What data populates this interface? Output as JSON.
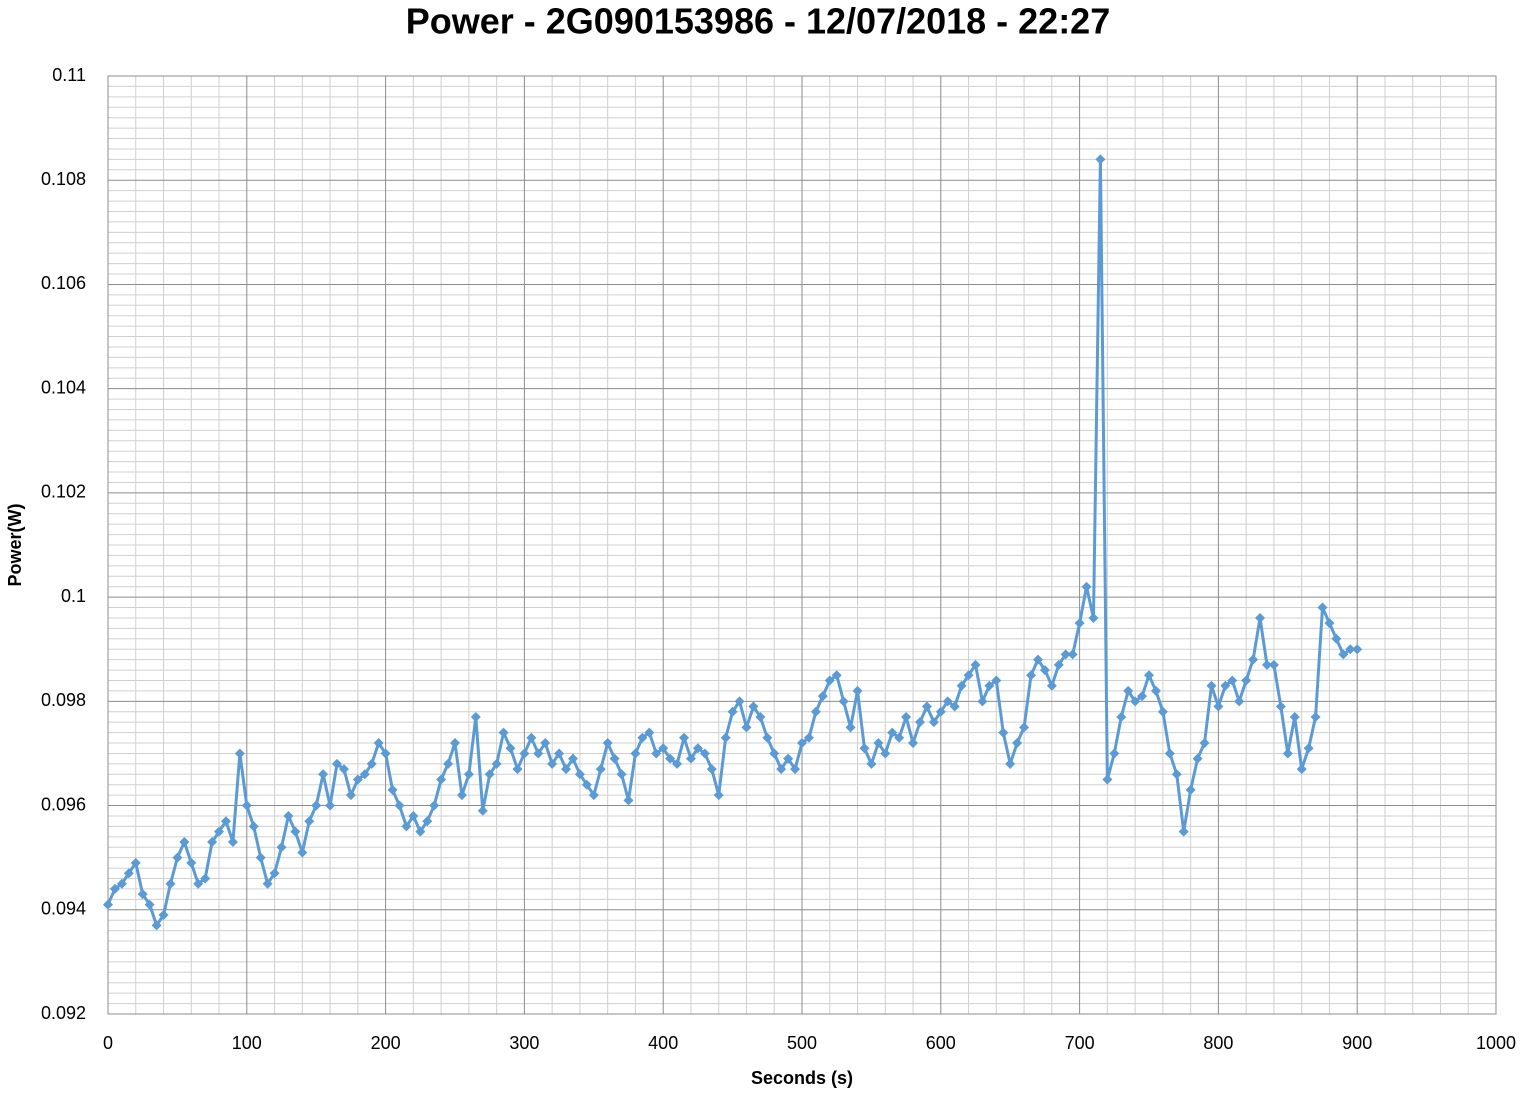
{
  "chart_data": {
    "type": "line",
    "title": "Power - 2G090153986 - 12/07/2018 - 22:27",
    "x_label": "Seconds (s)",
    "y_label": "Power(W)",
    "xlim": [
      0,
      1000
    ],
    "xticks": [
      0,
      100,
      200,
      300,
      400,
      500,
      600,
      700,
      800,
      900,
      1000
    ],
    "ylim": [
      0.092,
      0.11
    ],
    "yticks": [
      0.092,
      0.094,
      0.096,
      0.098,
      0.1,
      0.102,
      0.104,
      0.106,
      0.108,
      0.11
    ],
    "grid": true,
    "minor_grid": true,
    "marker": "diamond",
    "x": [
      0,
      5,
      10,
      15,
      20,
      25,
      30,
      35,
      40,
      45,
      50,
      55,
      60,
      65,
      70,
      75,
      80,
      85,
      90,
      95,
      100,
      105,
      110,
      115,
      120,
      125,
      130,
      135,
      140,
      145,
      150,
      155,
      160,
      165,
      170,
      175,
      180,
      185,
      190,
      195,
      200,
      205,
      210,
      215,
      220,
      225,
      230,
      235,
      240,
      245,
      250,
      255,
      260,
      265,
      270,
      275,
      280,
      285,
      290,
      295,
      300,
      305,
      310,
      315,
      320,
      325,
      330,
      335,
      340,
      345,
      350,
      355,
      360,
      365,
      370,
      375,
      380,
      385,
      390,
      395,
      400,
      405,
      410,
      415,
      420,
      425,
      430,
      435,
      440,
      445,
      450,
      455,
      460,
      465,
      470,
      475,
      480,
      485,
      490,
      495,
      500,
      505,
      510,
      515,
      520,
      525,
      530,
      535,
      540,
      545,
      550,
      555,
      560,
      565,
      570,
      575,
      580,
      585,
      590,
      595,
      600,
      605,
      610,
      615,
      620,
      625,
      630,
      635,
      640,
      645,
      650,
      655,
      660,
      665,
      670,
      675,
      680,
      685,
      690,
      695,
      700,
      705,
      710,
      715,
      720,
      725,
      730,
      735,
      740,
      745,
      750,
      755,
      760,
      765,
      770,
      775,
      780,
      785,
      790,
      795,
      800,
      805,
      810,
      815,
      820,
      825,
      830,
      835,
      840,
      845,
      850,
      855,
      860,
      865,
      870,
      875,
      880,
      885,
      890,
      895,
      900
    ],
    "series": [
      {
        "name": "Power(W)",
        "color": "#5b9bd5",
        "values": [
          0.0941,
          0.0944,
          0.0945,
          0.0947,
          0.0949,
          0.0943,
          0.0941,
          0.0937,
          0.0939,
          0.0945,
          0.095,
          0.0953,
          0.0949,
          0.0945,
          0.0946,
          0.0953,
          0.0955,
          0.0957,
          0.0953,
          0.097,
          0.096,
          0.0956,
          0.095,
          0.0945,
          0.0947,
          0.0952,
          0.0958,
          0.0955,
          0.0951,
          0.0957,
          0.096,
          0.0966,
          0.096,
          0.0968,
          0.0967,
          0.0962,
          0.0965,
          0.0966,
          0.0968,
          0.0972,
          0.097,
          0.0963,
          0.096,
          0.0956,
          0.0958,
          0.0955,
          0.0957,
          0.096,
          0.0965,
          0.0968,
          0.0972,
          0.0962,
          0.0966,
          0.0977,
          0.0959,
          0.0966,
          0.0968,
          0.0974,
          0.0971,
          0.0967,
          0.097,
          0.0973,
          0.097,
          0.0972,
          0.0968,
          0.097,
          0.0967,
          0.0969,
          0.0966,
          0.0964,
          0.0962,
          0.0967,
          0.0972,
          0.0969,
          0.0966,
          0.0961,
          0.097,
          0.0973,
          0.0974,
          0.097,
          0.0971,
          0.0969,
          0.0968,
          0.0973,
          0.0969,
          0.0971,
          0.097,
          0.0967,
          0.0962,
          0.0973,
          0.0978,
          0.098,
          0.0975,
          0.0979,
          0.0977,
          0.0973,
          0.097,
          0.0967,
          0.0969,
          0.0967,
          0.0972,
          0.0973,
          0.0978,
          0.0981,
          0.0984,
          0.0985,
          0.098,
          0.0975,
          0.0982,
          0.0971,
          0.0968,
          0.0972,
          0.097,
          0.0974,
          0.0973,
          0.0977,
          0.0972,
          0.0976,
          0.0979,
          0.0976,
          0.0978,
          0.098,
          0.0979,
          0.0983,
          0.0985,
          0.0987,
          0.098,
          0.0983,
          0.0984,
          0.0974,
          0.0968,
          0.0972,
          0.0975,
          0.0985,
          0.0988,
          0.0986,
          0.0983,
          0.0987,
          0.0989,
          0.0989,
          0.0995,
          0.1002,
          0.0996,
          0.1084,
          0.0965,
          0.097,
          0.0977,
          0.0982,
          0.098,
          0.0981,
          0.0985,
          0.0982,
          0.0978,
          0.097,
          0.0966,
          0.0955,
          0.0963,
          0.0969,
          0.0972,
          0.0983,
          0.0979,
          0.0983,
          0.0984,
          0.098,
          0.0984,
          0.0988,
          0.0996,
          0.0987,
          0.0987,
          0.0979,
          0.097,
          0.0977,
          0.0967,
          0.0971,
          0.0977,
          0.0998,
          0.0995,
          0.0992,
          0.0989,
          0.099,
          0.099
        ]
      }
    ]
  }
}
